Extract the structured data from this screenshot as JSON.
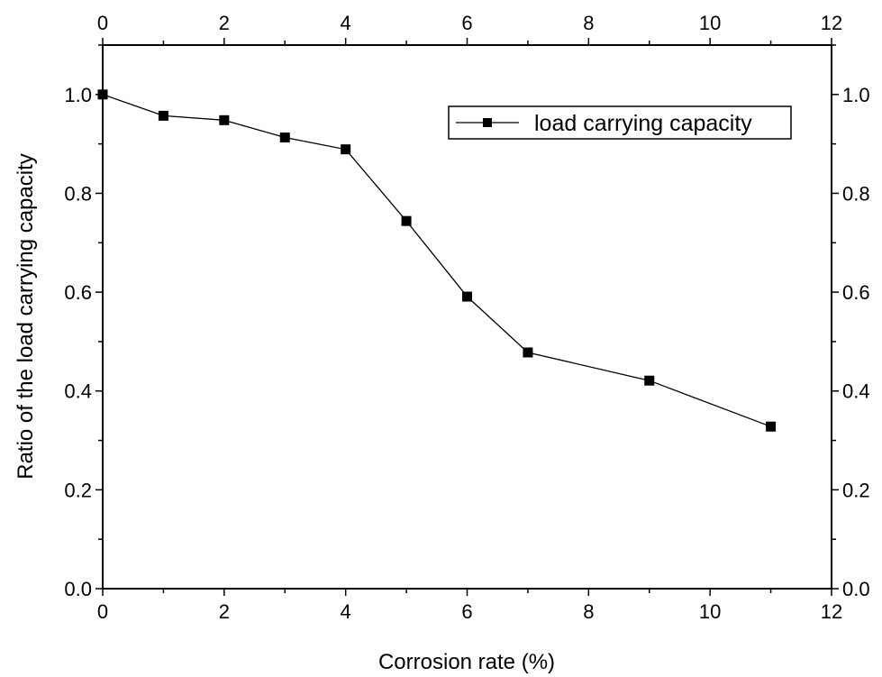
{
  "chart_data": {
    "type": "line",
    "xlabel": "Corrosion rate (%)",
    "ylabel": "Ratio of the load carrying capacity",
    "xlim": [
      0,
      12
    ],
    "ylim": [
      0,
      1.1
    ],
    "x_ticks": [
      0,
      2,
      4,
      6,
      8,
      10,
      12
    ],
    "y_ticks": [
      0.0,
      0.2,
      0.4,
      0.6,
      0.8,
      1.0
    ],
    "x_tick_labels": [
      "0",
      "2",
      "4",
      "6",
      "8",
      "10",
      "12"
    ],
    "y_tick_labels": [
      "0.0",
      "0.2",
      "0.4",
      "0.6",
      "0.8",
      "1.0"
    ],
    "grid": false,
    "legend_position": "top-right",
    "mirror_axes": true,
    "series": [
      {
        "name": "load carrying capacity",
        "marker": "square",
        "color": "#000000",
        "x": [
          0,
          1,
          2,
          3,
          4,
          5,
          6,
          7,
          9,
          11
        ],
        "y": [
          1.0,
          0.957,
          0.948,
          0.913,
          0.889,
          0.744,
          0.591,
          0.478,
          0.421,
          0.328
        ]
      }
    ]
  }
}
